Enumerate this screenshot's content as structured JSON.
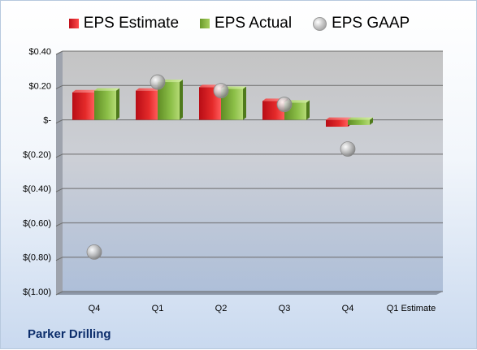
{
  "company": "Parker Drilling",
  "chart_data": {
    "type": "bar",
    "categories": [
      "Q4",
      "Q1",
      "Q2",
      "Q3",
      "Q4",
      "Q1 Estimate"
    ],
    "series": [
      {
        "name": "EPS Estimate",
        "type": "bar",
        "color": "#d42020",
        "values": [
          0.16,
          0.17,
          0.19,
          0.11,
          -0.04,
          null
        ]
      },
      {
        "name": "EPS Actual",
        "type": "bar",
        "color": "#8cc04a",
        "values": [
          0.17,
          0.22,
          0.18,
          0.1,
          -0.03,
          null
        ]
      },
      {
        "name": "EPS GAAP",
        "type": "scatter",
        "color": "#b0b0b0",
        "values": [
          -0.77,
          0.22,
          0.17,
          0.09,
          -0.17,
          null
        ]
      }
    ],
    "y_ticks": [
      "$0.40",
      "$0.20",
      "$-",
      "$(0.20)",
      "$(0.40)",
      "$(0.60)",
      "$(0.80)",
      "$(1.00)"
    ],
    "y_tick_values": [
      0.4,
      0.2,
      0,
      -0.2,
      -0.4,
      -0.6,
      -0.8,
      -1.0
    ],
    "ylim": [
      -1.0,
      0.4
    ],
    "grid": true,
    "legend_position": "top"
  }
}
